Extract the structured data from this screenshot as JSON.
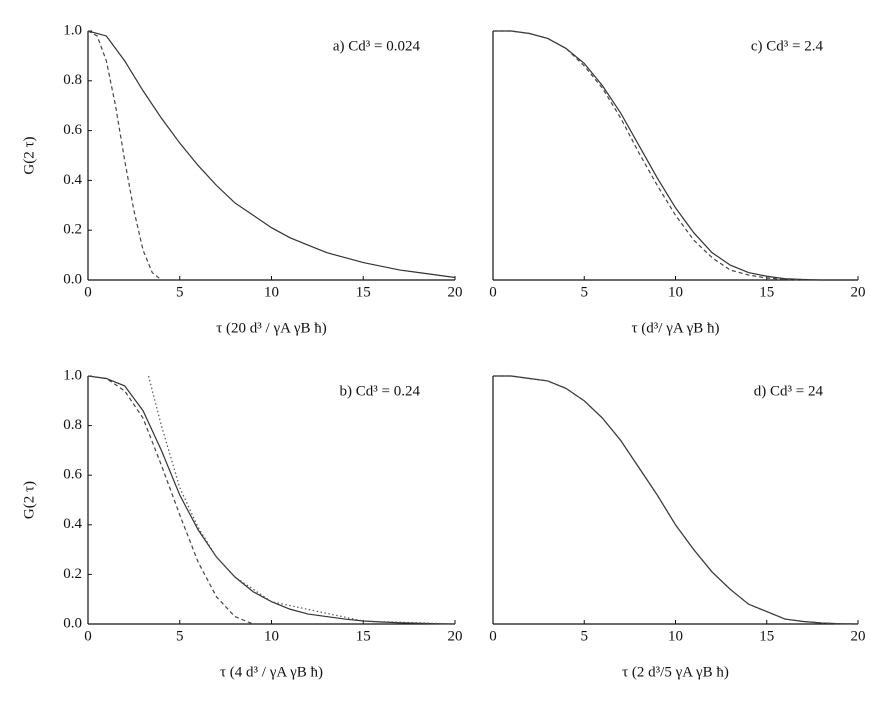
{
  "chart_data": [
    {
      "type": "line",
      "annotation": "a) Cd³ = 0.024",
      "xlabel": "τ  (20 d³ / γA γB ħ)",
      "ylabel": "G(2 τ)",
      "xlim": [
        0,
        20
      ],
      "ylim": [
        0,
        1
      ],
      "xticks": [
        0,
        5,
        10,
        15,
        20
      ],
      "yticks": [
        {
          "value": 0,
          "label": "0.0"
        },
        0.2,
        0.4,
        0.6,
        0.8,
        {
          "value": 1,
          "label": "1.0"
        }
      ],
      "series": [
        {
          "color": "#333333",
          "dash": "solid",
          "x": [
            0,
            1,
            2,
            3,
            4,
            5,
            6,
            7,
            8,
            9,
            10,
            11,
            12,
            13,
            14,
            15,
            16,
            17,
            18,
            19,
            20
          ],
          "values": [
            1.0,
            0.98,
            0.88,
            0.76,
            0.65,
            0.55,
            0.46,
            0.38,
            0.31,
            0.26,
            0.21,
            0.17,
            0.14,
            0.11,
            0.09,
            0.07,
            0.055,
            0.04,
            0.03,
            0.02,
            0.01
          ]
        },
        {
          "color": "#444444",
          "dash": "dashed",
          "x": [
            0,
            0.5,
            1,
            1.5,
            2,
            2.5,
            3,
            3.5,
            4
          ],
          "values": [
            1.0,
            0.98,
            0.88,
            0.7,
            0.48,
            0.28,
            0.12,
            0.03,
            0.0
          ]
        }
      ]
    },
    {
      "type": "line",
      "annotation": "c) Cd³ = 2.4",
      "xlabel": "τ  (d³/ γA γB ħ)",
      "xlim": [
        0,
        20
      ],
      "ylim": [
        0,
        1
      ],
      "xticks": [
        0,
        5,
        10,
        15,
        20
      ],
      "series": [
        {
          "color": "#333333",
          "dash": "solid",
          "x": [
            0,
            1,
            2,
            3,
            4,
            5,
            6,
            7,
            8,
            9,
            10,
            11,
            12,
            13,
            14,
            15,
            16,
            17,
            18,
            19,
            20
          ],
          "values": [
            1,
            1,
            0.99,
            0.97,
            0.93,
            0.87,
            0.78,
            0.67,
            0.54,
            0.41,
            0.29,
            0.19,
            0.11,
            0.06,
            0.03,
            0.015,
            0.005,
            0.002,
            0,
            0,
            0
          ]
        },
        {
          "color": "#444444",
          "dash": "dashed",
          "x": [
            0,
            1,
            2,
            3,
            4,
            5,
            6,
            7,
            8,
            9,
            10,
            11,
            12,
            13,
            14,
            15,
            16,
            17,
            18,
            19,
            20
          ],
          "values": [
            1,
            1,
            0.99,
            0.97,
            0.93,
            0.86,
            0.77,
            0.65,
            0.51,
            0.38,
            0.26,
            0.16,
            0.09,
            0.04,
            0.02,
            0.008,
            0.002,
            0,
            0,
            0,
            0
          ]
        }
      ]
    },
    {
      "type": "line",
      "annotation": "b) Cd³ = 0.24",
      "xlabel": "τ  (4 d³ / γA γB ħ)",
      "ylabel": "G(2 τ)",
      "xlim": [
        0,
        20
      ],
      "ylim": [
        0,
        1
      ],
      "xticks": [
        0,
        5,
        10,
        15,
        20
      ],
      "yticks": [
        {
          "value": 0,
          "label": "0.0"
        },
        0.2,
        0.4,
        0.6,
        0.8,
        {
          "value": 1,
          "label": "1.0"
        }
      ],
      "series": [
        {
          "color": "#333333",
          "dash": "solid",
          "x": [
            0,
            1,
            2,
            3,
            4,
            5,
            6,
            7,
            8,
            9,
            10,
            11,
            12,
            13,
            14,
            15,
            16,
            17,
            18,
            19,
            20
          ],
          "values": [
            1.0,
            0.99,
            0.96,
            0.86,
            0.7,
            0.52,
            0.38,
            0.27,
            0.19,
            0.13,
            0.09,
            0.06,
            0.04,
            0.03,
            0.02,
            0.012,
            0.008,
            0.005,
            0.003,
            0.001,
            0
          ]
        },
        {
          "color": "#444444",
          "dash": "dashed",
          "x": [
            0,
            1,
            2,
            3,
            4,
            5,
            6,
            7,
            8,
            9
          ],
          "values": [
            1,
            0.99,
            0.94,
            0.83,
            0.64,
            0.44,
            0.25,
            0.11,
            0.03,
            0
          ]
        },
        {
          "color": "#555555",
          "dash": "dotted",
          "x": [
            3.3,
            4,
            5,
            6,
            7,
            8,
            10,
            15,
            20
          ],
          "values": [
            1.0,
            0.8,
            0.55,
            0.39,
            0.27,
            0.19,
            0.09,
            0.012,
            0
          ]
        }
      ]
    },
    {
      "type": "line",
      "annotation": "d) Cd³ = 24",
      "xlabel": "τ  (2 d³/5 γA γB ħ)",
      "xlim": [
        0,
        20
      ],
      "ylim": [
        0,
        1
      ],
      "xticks": [
        0,
        5,
        10,
        15,
        20
      ],
      "series": [
        {
          "color": "#333333",
          "dash": "solid",
          "x": [
            0,
            1,
            2,
            3,
            4,
            5,
            6,
            7,
            8,
            9,
            10,
            11,
            12,
            13,
            14,
            15,
            16,
            17,
            18,
            19,
            20
          ],
          "values": [
            1,
            1,
            0.99,
            0.98,
            0.95,
            0.9,
            0.83,
            0.74,
            0.63,
            0.52,
            0.4,
            0.3,
            0.21,
            0.14,
            0.08,
            0.05,
            0.02,
            0.01,
            0.004,
            0.001,
            0
          ]
        },
        {
          "color": "#444444",
          "dash": "dashed",
          "x": [
            0,
            1,
            2,
            3,
            4,
            5,
            6,
            7,
            8,
            9,
            10,
            11,
            12,
            13,
            14,
            15,
            16,
            17,
            18,
            19,
            20
          ],
          "values": [
            1,
            1,
            0.99,
            0.98,
            0.95,
            0.9,
            0.83,
            0.74,
            0.63,
            0.52,
            0.4,
            0.3,
            0.21,
            0.14,
            0.08,
            0.05,
            0.02,
            0.01,
            0.004,
            0.001,
            0
          ]
        }
      ]
    }
  ]
}
